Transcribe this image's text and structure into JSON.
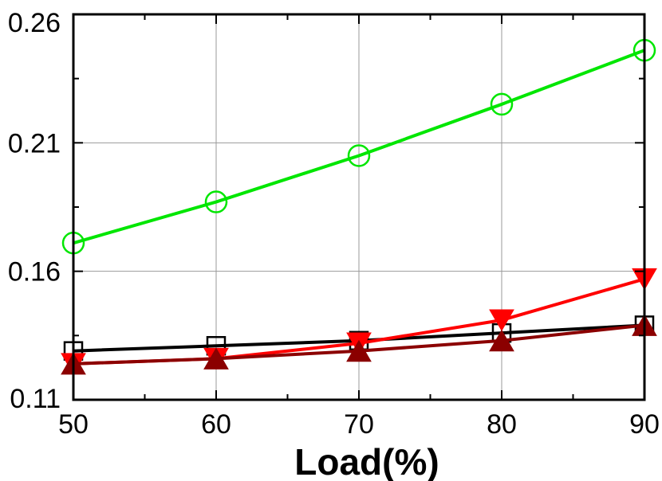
{
  "chart_data": {
    "type": "line",
    "title": "",
    "xlabel": "Load(%)",
    "ylabel": "",
    "x": [
      50,
      60,
      70,
      80,
      90
    ],
    "x_ticks": [
      "50",
      "60",
      "70",
      "80",
      "90"
    ],
    "y_ticks": [
      "0.11",
      "0.16",
      "0.21",
      "0.26"
    ],
    "xlim": [
      50,
      90
    ],
    "ylim": [
      0.11,
      0.26
    ],
    "grid": true,
    "series": [
      {
        "color": "#00e600",
        "marker": "circle-open",
        "values": [
          0.171,
          0.187,
          0.205,
          0.225,
          0.246
        ]
      },
      {
        "color": "#000000",
        "marker": "square-open",
        "values": [
          0.129,
          0.131,
          0.133,
          0.136,
          0.139
        ]
      },
      {
        "color": "#ff0000",
        "marker": "triangle-down",
        "values": [
          0.124,
          0.126,
          0.132,
          0.141,
          0.157
        ]
      },
      {
        "color": "#8b0000",
        "marker": "triangle-up",
        "values": [
          0.124,
          0.126,
          0.129,
          0.133,
          0.139
        ]
      }
    ]
  }
}
